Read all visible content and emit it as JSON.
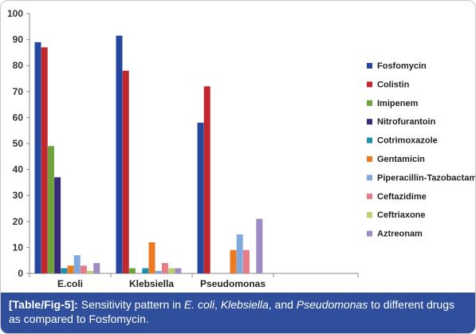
{
  "chart_data": {
    "type": "bar",
    "categories": [
      "E.coli",
      "Klebsiella",
      "Pseudomonas"
    ],
    "ylim": [
      0,
      100
    ],
    "yticks": [
      0,
      10,
      20,
      30,
      40,
      50,
      60,
      70,
      80,
      90,
      100
    ],
    "grid": false,
    "legend_position": "right",
    "series": [
      {
        "name": "Fosfomycin",
        "color": "#2448a0",
        "values": [
          89,
          91.5,
          58
        ]
      },
      {
        "name": "Colistin",
        "color": "#c0282e",
        "values": [
          87,
          78,
          72
        ]
      },
      {
        "name": "Imipenem",
        "color": "#6fa23a",
        "values": [
          49,
          2,
          0
        ]
      },
      {
        "name": "Nitrofurantoin",
        "color": "#3b2a78",
        "values": [
          37,
          0,
          0
        ]
      },
      {
        "name": "Cotrimoxazole",
        "color": "#1f8fb0",
        "values": [
          2,
          2,
          0
        ]
      },
      {
        "name": "Gentamicin",
        "color": "#ec7a22",
        "values": [
          3,
          12,
          9
        ]
      },
      {
        "name": "Piperacillin-Tazobactam",
        "color": "#7fa9dc",
        "values": [
          7,
          1,
          15
        ]
      },
      {
        "name": "Ceftazidime",
        "color": "#e77c87",
        "values": [
          3,
          4,
          9
        ]
      },
      {
        "name": "Ceftriaxone",
        "color": "#b9d06b",
        "values": [
          1,
          2,
          0
        ]
      },
      {
        "name": "Aztreonam",
        "color": "#9e8bc4",
        "values": [
          4,
          2,
          21
        ]
      }
    ]
  },
  "caption": {
    "lead": "[Table/Fig-5]:",
    "text_1": " Sensitivity pattern in ",
    "italic_1": "E. coli",
    "text_2": ", ",
    "italic_2": "Klebsiella",
    "text_3": ", and ",
    "italic_3": "Pseudomonas",
    "text_4": " to different drugs as compared to Fosfomycin."
  }
}
